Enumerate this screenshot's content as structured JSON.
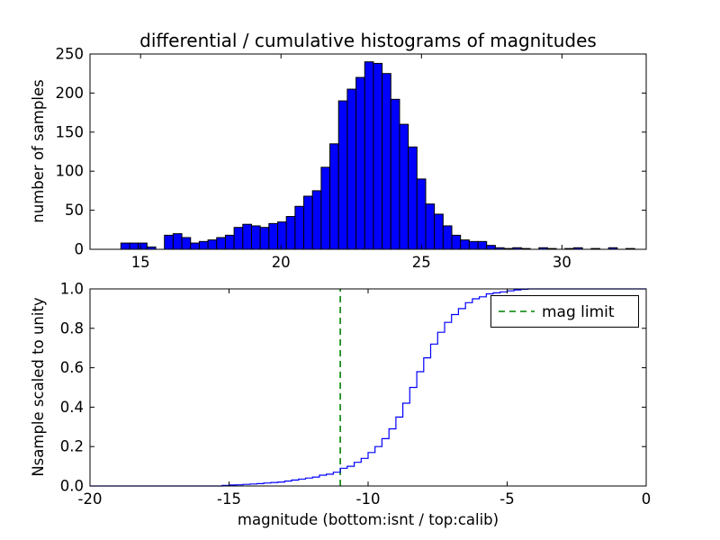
{
  "chart_data": [
    {
      "type": "bar",
      "title": "differential / cumulative histograms of magnitudes",
      "xlabel": "",
      "ylabel": "number of samples",
      "bin_start": 14.3,
      "bin_width": 0.31,
      "counts": [
        8,
        8,
        8,
        3,
        0,
        18,
        20,
        15,
        8,
        10,
        12,
        15,
        18,
        28,
        32,
        30,
        28,
        33,
        35,
        42,
        55,
        68,
        75,
        105,
        135,
        190,
        205,
        220,
        240,
        238,
        225,
        192,
        160,
        131,
        90,
        58,
        45,
        30,
        18,
        12,
        10,
        10,
        5,
        2,
        1,
        2,
        1,
        0,
        2,
        1,
        0,
        1,
        2,
        0,
        1,
        0,
        2,
        0,
        1,
        0
      ],
      "xlim": [
        13.2,
        33.0
      ],
      "ylim": [
        0,
        250
      ],
      "xticks": [
        15,
        20,
        25,
        30
      ],
      "xtick_labels": [
        "15",
        "20",
        "25",
        "30"
      ],
      "yticks": [
        0,
        50,
        100,
        150,
        200,
        250
      ],
      "ytick_labels": [
        "0",
        "50",
        "100",
        "150",
        "200",
        "250"
      ],
      "grid": false,
      "bar_color": "#0000ff",
      "bar_edge": "#000000"
    },
    {
      "type": "line",
      "title": "",
      "xlabel": "magnitude (bottom:isnt / top:calib)",
      "ylabel": "Nsample scaled to unity",
      "x": [
        -20,
        -15.5,
        -15.25,
        -15,
        -14.75,
        -14.5,
        -14.25,
        -14,
        -13.75,
        -13.5,
        -13.25,
        -13,
        -12.75,
        -12.5,
        -12.25,
        -12,
        -11.75,
        -11.5,
        -11.25,
        -11,
        -10.75,
        -10.5,
        -10.25,
        -10,
        -9.75,
        -9.5,
        -9.25,
        -9,
        -8.75,
        -8.5,
        -8.25,
        -8,
        -7.75,
        -7.5,
        -7.25,
        -7,
        -6.75,
        -6.5,
        -6.25,
        -6,
        -5.75,
        -5.5,
        -5.25,
        -5,
        -4.75,
        -4.5,
        -4.25,
        0
      ],
      "y": [
        0,
        0,
        0.003,
        0.005,
        0.006,
        0.008,
        0.01,
        0.012,
        0.015,
        0.018,
        0.02,
        0.025,
        0.03,
        0.035,
        0.04,
        0.045,
        0.055,
        0.06,
        0.07,
        0.09,
        0.1,
        0.12,
        0.14,
        0.17,
        0.2,
        0.24,
        0.29,
        0.35,
        0.42,
        0.5,
        0.58,
        0.65,
        0.72,
        0.78,
        0.83,
        0.87,
        0.9,
        0.93,
        0.95,
        0.96,
        0.975,
        0.98,
        0.985,
        0.99,
        0.995,
        0.998,
        1.0,
        1.0
      ],
      "step": true,
      "xlim": [
        -20,
        0
      ],
      "ylim": [
        0.0,
        1.0
      ],
      "xticks": [
        -20,
        -15,
        -10,
        -5,
        0
      ],
      "xtick_labels": [
        "-20",
        "-15",
        "-10",
        "-5",
        "0"
      ],
      "yticks": [
        0.0,
        0.2,
        0.4,
        0.6,
        0.8,
        1.0
      ],
      "ytick_labels": [
        "0.0",
        "0.2",
        "0.4",
        "0.6",
        "0.8",
        "1.0"
      ],
      "grid": false,
      "line_color": "#0000ff",
      "vline": {
        "x": -11,
        "color": "#008000",
        "style": "dashed",
        "label": "mag limit"
      },
      "legend_position": "upper right"
    }
  ]
}
